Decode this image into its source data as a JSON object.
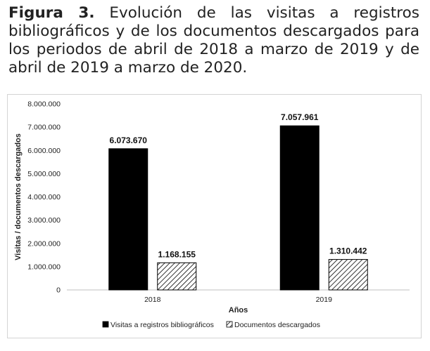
{
  "figure": {
    "label": "Figura 3.",
    "caption": "Evolución de las visitas a registros bibliográficos y de los documentos descargados para los periodos de abril de 2018 a marzo de 2019 y de abril de 2019 a marzo de 2020."
  },
  "chart_data": {
    "type": "bar",
    "categories": [
      "2018",
      "2019"
    ],
    "series": [
      {
        "name": "Visitas a registros bibliográficos",
        "values": [
          6073670,
          7057961
        ],
        "labels": [
          "6.073.670",
          "7.057.961"
        ],
        "color": "#000000",
        "pattern": "solid"
      },
      {
        "name": "Documentos descargados",
        "values": [
          1168155,
          1310442
        ],
        "labels": [
          "1.168.155",
          "1.310.442"
        ],
        "color": "#000000",
        "pattern": "diagonal-hatch"
      }
    ],
    "xlabel": "Años",
    "ylabel": "Visitas / documentos descargados",
    "ylim": [
      0,
      8000000
    ],
    "yticks": [
      0,
      1000000,
      2000000,
      3000000,
      4000000,
      5000000,
      6000000,
      7000000,
      8000000
    ],
    "ytick_labels": [
      "0",
      "1.000.000",
      "2.000.000",
      "3.000.000",
      "4.000.000",
      "5.000.000",
      "6.000.000",
      "7.000.000",
      "8.000.000"
    ],
    "grid": false,
    "legend_position": "bottom"
  }
}
